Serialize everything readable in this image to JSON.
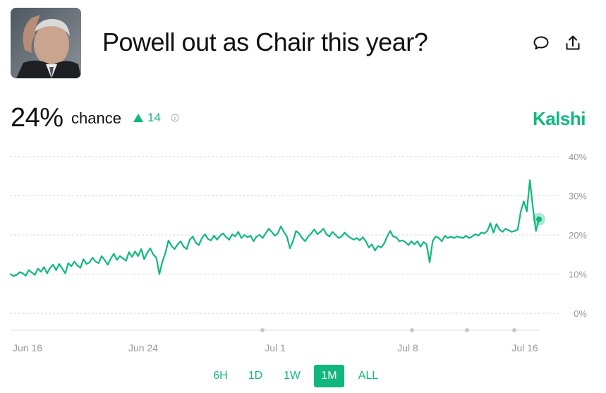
{
  "header": {
    "title": "Powell out as Chair this year?",
    "avatar_icon": "person-photo-icon",
    "comment_icon": "comment-icon",
    "share_icon": "share-icon"
  },
  "summary": {
    "percent": "24%",
    "chance_label": "chance",
    "delta": "14",
    "delta_direction": "up",
    "info_icon": "info-icon",
    "brand": "Kalshi"
  },
  "colors": {
    "accent": "#11b87d",
    "grid": "#d8d8d8",
    "text": "#111111",
    "axis_text": "#999999"
  },
  "ranges": {
    "items": [
      "6H",
      "1D",
      "1W",
      "1M",
      "ALL"
    ],
    "selected": "1M"
  },
  "chart_data": {
    "type": "line",
    "x_tick_labels": [
      "Jun 16",
      "Jun 24",
      "Jul 1",
      "Jul 8",
      "Jul 16"
    ],
    "y_tick_labels": [
      "40%",
      "30%",
      "20%",
      "10%",
      "0%"
    ],
    "ylim": [
      0,
      40
    ],
    "grid": true,
    "last_value": 24,
    "series": [
      {
        "values": [
          10,
          9.5,
          9.8,
          10.5,
          10.2,
          9.6,
          11,
          10.4,
          9.8,
          11.4,
          10.6,
          11.8,
          10.2,
          11.6,
          12.4,
          11,
          12.6,
          11.4,
          10.2,
          12.8,
          12,
          13.2,
          12.2,
          11.6,
          13.8,
          12.6,
          13,
          14.2,
          13.2,
          12.8,
          14.6,
          13.6,
          12.4,
          14,
          15.2,
          13.6,
          14.6,
          14,
          13.4,
          15.6,
          14.4,
          15.8,
          14.6,
          16.4,
          13.8,
          15.4,
          16.6,
          15,
          14.2,
          10,
          13.2,
          15.4,
          18.6,
          17.2,
          16.4,
          17.6,
          18.4,
          17,
          16.4,
          18.8,
          19.6,
          18,
          17.4,
          19.2,
          20.2,
          19,
          18.6,
          19.8,
          18.8,
          19.8,
          20.4,
          19.4,
          18.8,
          20.2,
          19.6,
          20.8,
          19.2,
          20,
          19.4,
          19.8,
          18.4,
          19.6,
          20,
          19.2,
          20.4,
          21.6,
          20.8,
          19.8,
          20.4,
          22.2,
          20.8,
          19.6,
          16.6,
          18.4,
          21,
          20.4,
          19.2,
          18.4,
          19.6,
          20.4,
          21.4,
          20.2,
          20.8,
          21.6,
          20.2,
          19.6,
          20.8,
          20,
          19.2,
          19.6,
          20.6,
          19.8,
          19.2,
          18.8,
          19.2,
          18.6,
          19.4,
          18.4,
          16.8,
          17.6,
          16,
          17.2,
          16.8,
          17.8,
          19.6,
          21,
          19.6,
          19.4,
          18.4,
          18.6,
          18.2,
          17.4,
          18.4,
          17.6,
          18.4,
          17,
          18.2,
          17.6,
          13,
          18.4,
          19.6,
          19.2,
          18.4,
          19.8,
          19.2,
          19.6,
          19.2,
          19.6,
          19.4,
          19.2,
          19.8,
          19.2,
          19.6,
          20.2,
          19.8,
          20.6,
          20.4,
          21,
          23,
          20.6,
          22.8,
          21.4,
          20.8,
          21.6,
          21.2,
          20.8,
          21,
          21.4,
          26,
          28.6,
          26,
          34,
          27,
          21,
          24
        ]
      }
    ]
  }
}
